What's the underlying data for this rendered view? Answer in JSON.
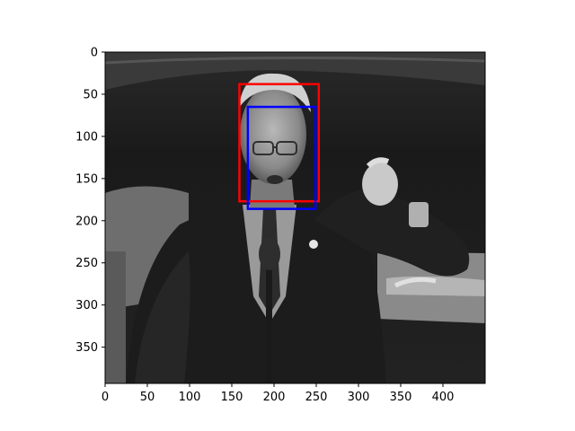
{
  "chart_data": {
    "type": "image-with-bounding-boxes",
    "title": "",
    "xlabel": "",
    "ylabel": "",
    "image": {
      "description_name": "grayscale-photo",
      "width": 450,
      "height": 393
    },
    "xlim": [
      0,
      450
    ],
    "ylim": [
      393,
      0
    ],
    "x_ticks": [
      0,
      50,
      100,
      150,
      200,
      250,
      300,
      350,
      400
    ],
    "y_ticks": [
      0,
      50,
      100,
      150,
      200,
      250,
      300,
      350
    ],
    "grid": false,
    "legend": "none",
    "boxes": [
      {
        "name": "red-box",
        "color": "#ff0000",
        "x0": 159,
        "y0": 38,
        "x1": 253,
        "y1": 177
      },
      {
        "name": "blue-box",
        "color": "#0000ff",
        "x0": 169,
        "y0": 65,
        "x1": 249,
        "y1": 186
      }
    ]
  }
}
